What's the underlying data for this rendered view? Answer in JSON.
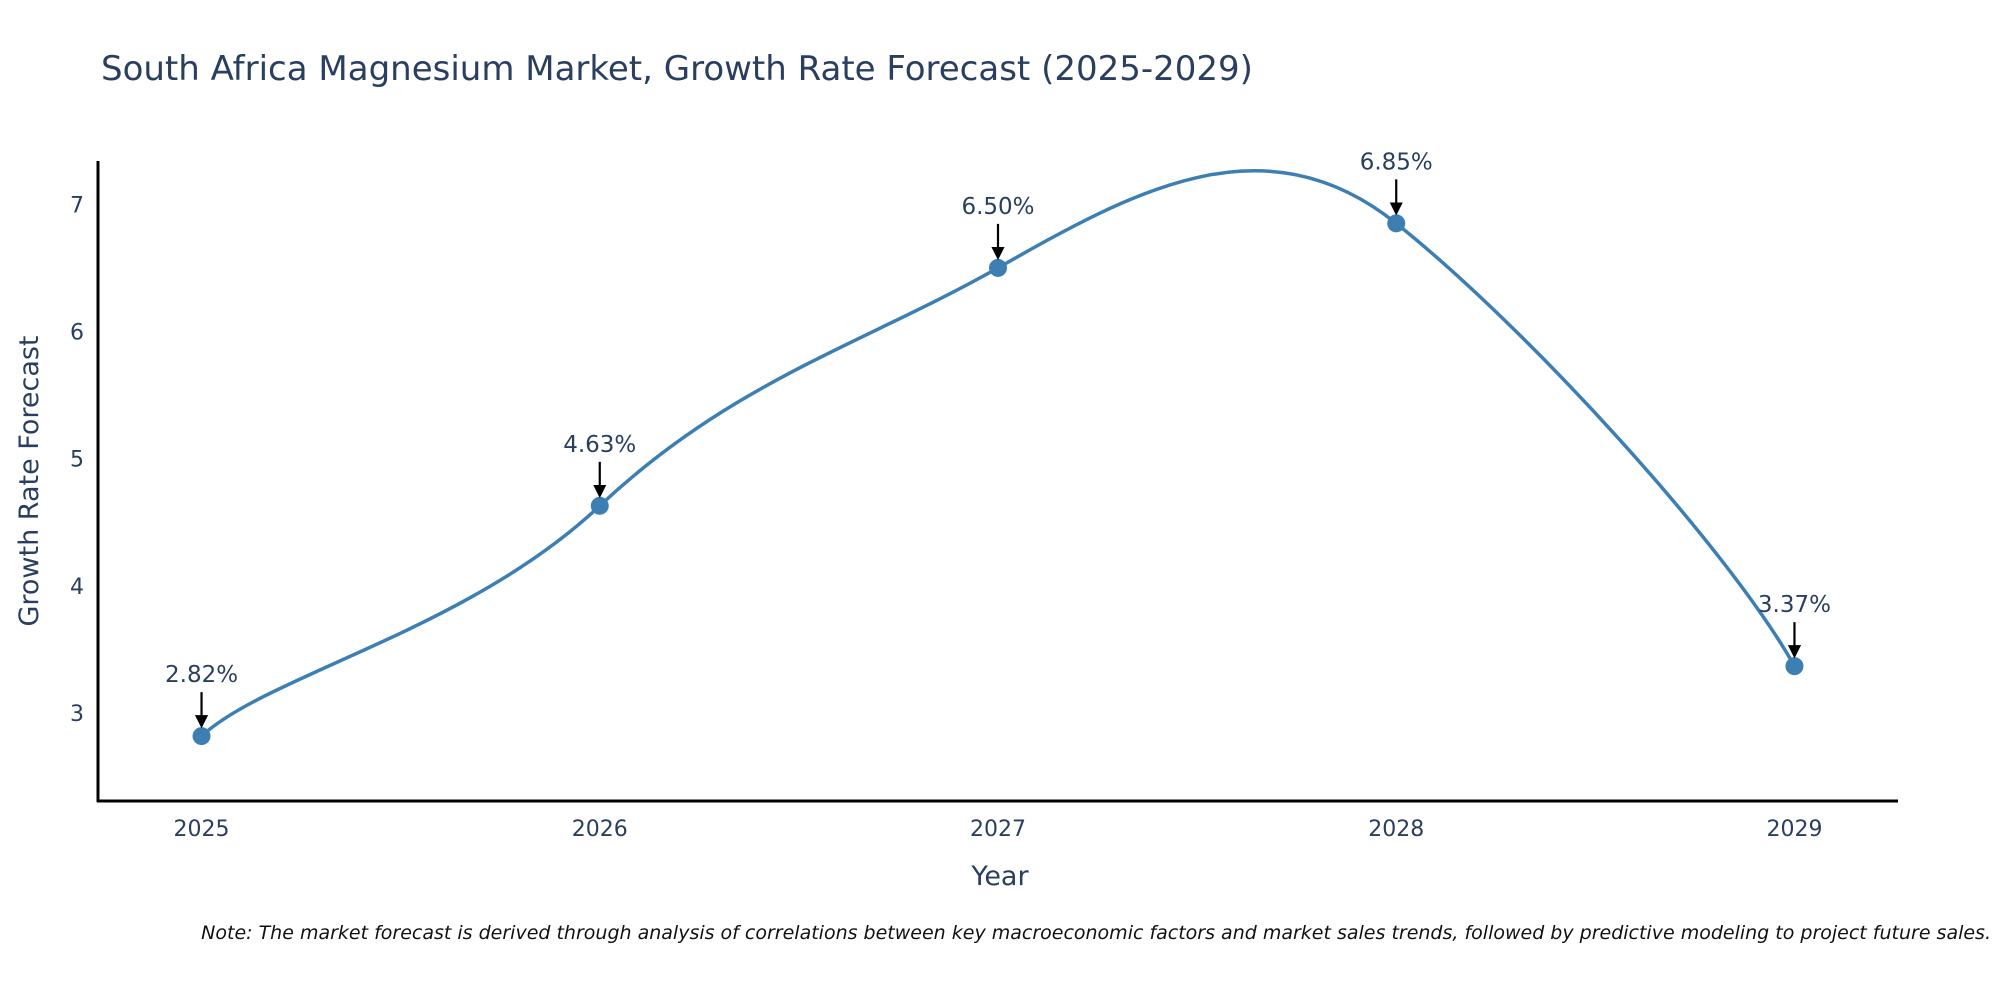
{
  "chart_data": {
    "type": "line",
    "title": "South Africa Magnesium Market, Growth Rate Forecast (2025-2029)",
    "xlabel": "Year",
    "ylabel": "Growth Rate Forecast",
    "x": [
      2025,
      2026,
      2027,
      2028,
      2029
    ],
    "x_tick_labels": [
      "2025",
      "2026",
      "2027",
      "2028",
      "2029"
    ],
    "values": [
      2.82,
      4.63,
      6.5,
      6.85,
      3.37
    ],
    "data_labels": [
      "2.82%",
      "4.63%",
      "6.50%",
      "6.85%",
      "3.37%"
    ],
    "y_ticks": [
      3,
      4,
      5,
      6,
      7
    ],
    "y_tick_labels": [
      "3",
      "4",
      "5",
      "6",
      "7"
    ],
    "xlim": [
      2024.74,
      2029.26
    ],
    "ylim": [
      2.31,
      7.34
    ],
    "line_shape": "spline",
    "grid": false,
    "colors": {
      "line": "#3d7fb2",
      "marker": "#3d7fb2",
      "text": "#2a3f5f",
      "arrow": "#000000"
    }
  },
  "note": "Note: The market forecast is derived through analysis of correlations between key macroeconomic factors and market sales trends, followed by predictive modeling to project future sales."
}
